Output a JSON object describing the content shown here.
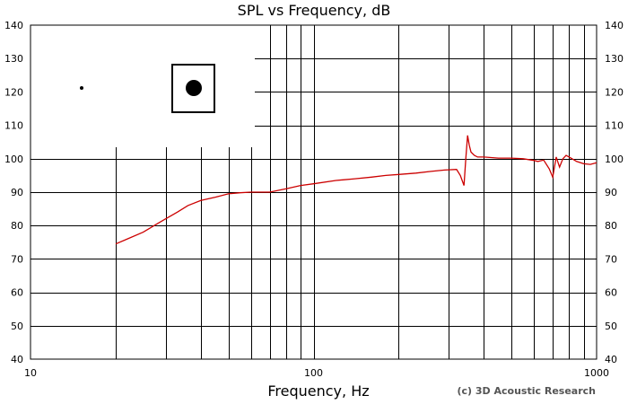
{
  "chart_data": {
    "type": "line",
    "title": "SPL vs Frequency, dB",
    "xlabel": "Frequency, Hz",
    "ylabel": "",
    "xscale": "log",
    "xlim": [
      10,
      1000
    ],
    "ylim": [
      40,
      140
    ],
    "x_tick_labels": [
      "10",
      "100",
      "1000"
    ],
    "y_tick_labels": [
      "40",
      "50",
      "60",
      "70",
      "80",
      "90",
      "100",
      "110",
      "120",
      "130",
      "140"
    ],
    "grid": true,
    "credit": "(c) 3D Acoustic Research",
    "line_color": "#cc0000",
    "inset": "speaker front view with small tweeter dot and circular driver in square box",
    "series": [
      {
        "x": [
          20,
          22,
          25,
          28,
          30,
          33,
          36,
          40,
          45,
          50,
          55,
          60,
          70,
          80,
          90,
          100,
          120,
          140,
          160,
          180,
          200,
          230,
          260,
          290,
          320,
          330,
          340,
          345,
          350,
          355,
          360,
          370,
          380,
          400,
          450,
          500,
          550,
          600,
          620,
          650,
          680,
          700,
          720,
          740,
          760,
          780,
          800,
          850,
          900,
          950,
          1000
        ],
        "y": [
          74.5,
          76,
          78,
          80.5,
          82,
          84,
          86,
          87.5,
          88.5,
          89.5,
          89.8,
          90,
          90,
          91,
          92,
          92.5,
          93.5,
          94,
          94.5,
          95,
          95.3,
          95.7,
          96.2,
          96.6,
          96.8,
          95,
          92,
          100,
          107,
          104,
          102,
          101,
          100.5,
          100.5,
          100.2,
          100.2,
          100,
          99.5,
          99.2,
          99.6,
          97,
          94.5,
          100.5,
          97.5,
          100,
          101,
          100.5,
          99.2,
          98.5,
          98.3,
          98.8
        ]
      }
    ]
  }
}
